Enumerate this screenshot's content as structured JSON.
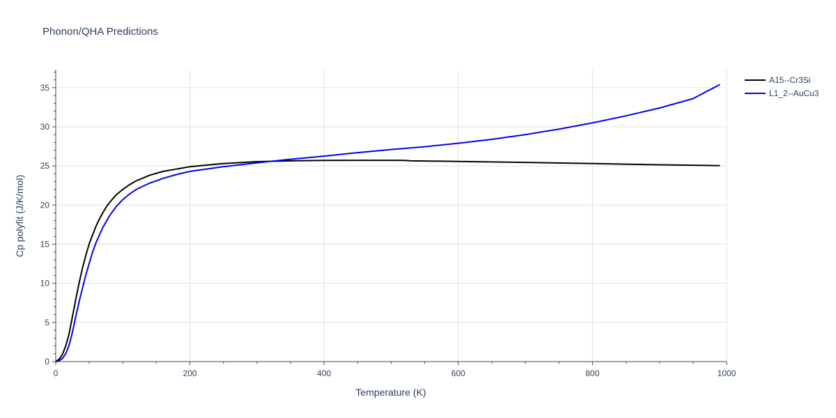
{
  "chart_data": {
    "type": "line",
    "title": "Phonon/QHA Predictions",
    "xlabel": "Temperature (K)",
    "ylabel": "Cp polyfit (J/K/mol)",
    "xlim": [
      0,
      1000
    ],
    "ylim": [
      0,
      37.3
    ],
    "xticks": [
      0,
      200,
      400,
      600,
      800,
      1000
    ],
    "yticks": [
      0,
      5,
      10,
      15,
      20,
      25,
      30,
      35
    ],
    "grid": true,
    "legend_position": "top-right",
    "series": [
      {
        "name": "A15--Cr3Si",
        "color": "#000000",
        "x": [
          0,
          5,
          10,
          15,
          20,
          25,
          30,
          35,
          40,
          45,
          50,
          55,
          60,
          65,
          70,
          75,
          80,
          90,
          100,
          110,
          120,
          140,
          160,
          180,
          200,
          250,
          300,
          350,
          400,
          450,
          500,
          520,
          530,
          560,
          600,
          700,
          800,
          900,
          990
        ],
        "y": [
          0,
          0.3,
          0.9,
          2.0,
          3.6,
          5.8,
          8.0,
          10.1,
          12.0,
          13.6,
          15.1,
          16.2,
          17.3,
          18.2,
          19.0,
          19.7,
          20.3,
          21.3,
          22.0,
          22.6,
          23.1,
          23.8,
          24.3,
          24.6,
          24.9,
          25.3,
          25.55,
          25.65,
          25.7,
          25.72,
          25.72,
          25.7,
          25.65,
          25.62,
          25.58,
          25.45,
          25.3,
          25.15,
          25.03
        ]
      },
      {
        "name": "L1_2--AuCu3",
        "color": "#0000ee",
        "x": [
          0,
          5,
          10,
          15,
          20,
          25,
          30,
          35,
          40,
          45,
          50,
          55,
          60,
          70,
          80,
          90,
          100,
          110,
          120,
          140,
          160,
          180,
          200,
          250,
          300,
          350,
          400,
          450,
          500,
          550,
          600,
          650,
          700,
          750,
          800,
          850,
          900,
          950,
          990
        ],
        "y": [
          0,
          0.1,
          0.4,
          1.0,
          2.1,
          3.8,
          5.8,
          7.7,
          9.4,
          11.1,
          12.6,
          14.0,
          15.2,
          17.1,
          18.6,
          19.8,
          20.7,
          21.4,
          22.0,
          22.8,
          23.4,
          23.9,
          24.3,
          24.9,
          25.4,
          25.85,
          26.25,
          26.7,
          27.1,
          27.45,
          27.9,
          28.4,
          29.0,
          29.7,
          30.5,
          31.4,
          32.4,
          33.6,
          35.4
        ]
      }
    ]
  }
}
